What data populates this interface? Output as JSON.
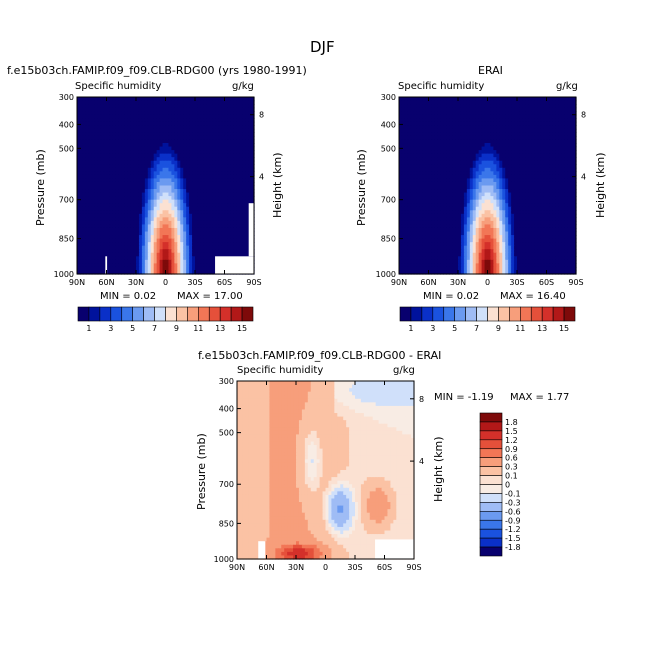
{
  "figure_title": "DJF",
  "colorbar_full": {
    "labels": [
      "1",
      "3",
      "5",
      "7",
      "9",
      "11",
      "13",
      "15"
    ],
    "colors": [
      "#08006e",
      "#00129c",
      "#0a30c8",
      "#1a52df",
      "#3a76ea",
      "#6b9af0",
      "#9fbcf5",
      "#d0e0fa",
      "#fbe1d2",
      "#fbc2a4",
      "#f79e7b",
      "#f27656",
      "#e5503a",
      "#d4302a",
      "#b21818",
      "#7e0a0a"
    ]
  },
  "colorbar_diff": {
    "labels": [
      "1.8",
      "1.5",
      "1.2",
      "0.9",
      "0.6",
      "0.3",
      "0.1",
      "0",
      "-0.1",
      "-0.3",
      "-0.6",
      "-0.9",
      "-1.2",
      "-1.5",
      "-1.8"
    ],
    "colors": [
      "#7e0a0a",
      "#b21818",
      "#d4302a",
      "#e5503a",
      "#f27656",
      "#f79e7b",
      "#fbc2a4",
      "#fbe1d2",
      "#f8ece4",
      "#d0e0fa",
      "#9fbcf5",
      "#6b9af0",
      "#3a76ea",
      "#1a52df",
      "#0a30c8",
      "#08006e"
    ]
  },
  "chart_data": [
    {
      "type": "heatmap",
      "title": "f.e15b03ch.FAMIP.f09_f09.CLB-RDG00 (yrs 1980-1991)",
      "left_label": "Specific humidity",
      "units_label": "g/kg",
      "ylabel": "Pressure (mb)",
      "y2label": "Height (km)",
      "x_ticks": [
        "90N",
        "60N",
        "30N",
        "0",
        "30S",
        "60S",
        "90S"
      ],
      "y_ticks": [
        "300",
        "400",
        "500",
        "700",
        "850",
        "1000"
      ],
      "y2_ticks": [
        "8",
        "4"
      ],
      "min_text": "MIN =    0.02",
      "max_text": "MAX =   17.00",
      "min": 0.02,
      "max": 17.0
    },
    {
      "type": "heatmap",
      "title": "ERAI",
      "left_label": "Specific humidity",
      "units_label": "g/kg",
      "ylabel": "Pressure (mb)",
      "y2label": "Height (km)",
      "x_ticks": [
        "90N",
        "60N",
        "30N",
        "0",
        "30S",
        "60S",
        "90S"
      ],
      "y_ticks": [
        "300",
        "400",
        "500",
        "700",
        "850",
        "1000"
      ],
      "y2_ticks": [
        "8",
        "4"
      ],
      "min_text": "MIN =    0.02",
      "max_text": "MAX =   16.40",
      "min": 0.02,
      "max": 16.4
    },
    {
      "type": "heatmap",
      "title": "f.e15b03ch.FAMIP.f09_f09.CLB-RDG00 - ERAI",
      "left_label": "Specific humidity",
      "units_label": "g/kg",
      "ylabel": "Pressure (mb)",
      "y2label": "Height (km)",
      "x_ticks": [
        "90N",
        "60N",
        "30N",
        "0",
        "30S",
        "60S",
        "90S"
      ],
      "y_ticks": [
        "300",
        "400",
        "500",
        "700",
        "850",
        "1000"
      ],
      "y2_ticks": [
        "8",
        "4"
      ],
      "min_text": "MIN =   -1.19",
      "max_text": "MAX =    1.77",
      "min": -1.19,
      "max": 1.77
    }
  ]
}
